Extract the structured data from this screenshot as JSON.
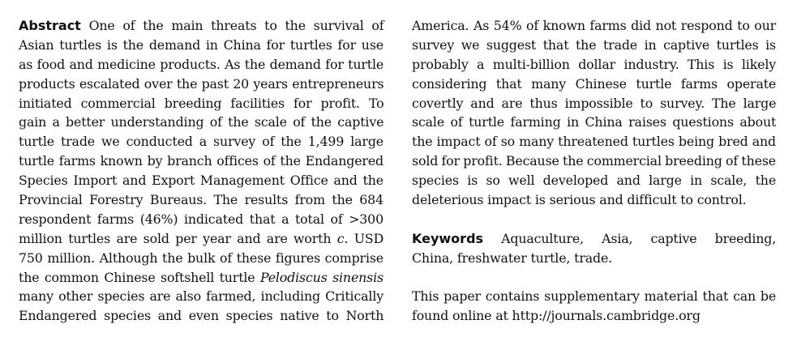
{
  "abstract": {
    "heading": "Abstract",
    "lines": [
      "One of the main threats to the survival of",
      "Asian turtles is the demand in China for turtles for use",
      "as food and medicine products. As the demand for turtle",
      "products escalated over the past 20 years entrepreneurs",
      "initiated commercial breeding facilities for profit. To",
      "gain a better understanding of the scale of the captive",
      "turtle trade we conducted a survey of the 1,499 large",
      "turtle farms known by branch offices of the Endangered",
      "Species Import and Export Management Office and the",
      "Provincial Forestry Bureaus. The results from the 684",
      "respondent farms (46%) indicated that a total of >300",
      "million turtles are sold per year and are worth",
      "c.",
      "USD",
      "750 million. Although the bulk of these figures comprise",
      "the common Chinese softshell turtle",
      "Pelodiscus sinensis",
      "many other species are also farmed, including Critically",
      "Endangered species and even species native to North"
    ],
    "right_lines": [
      "America. As 54% of known farms did not respond to our",
      "survey we suggest that the trade in captive turtles is",
      "probably a multi-billion dollar industry. This is likely",
      "considering that many Chinese turtle farms operate",
      "covertly and are thus impossible to survey. The large",
      "scale of turtle farming in China raises questions about",
      "the impact of so many threatened turtles being bred and",
      "sold for profit. Because the commercial breeding of these",
      "species is so well developed and large in scale, the",
      "deleterious impact is serious and difficult to control."
    ]
  },
  "keywords": {
    "heading": "Keywords",
    "line1": "Aquaculture, Asia, captive breeding,",
    "line2": "China, freshwater turtle, trade."
  },
  "supplementary": {
    "line1": "This paper contains supplementary material that can be",
    "line2": "found online at http://journals.cambridge.org"
  }
}
